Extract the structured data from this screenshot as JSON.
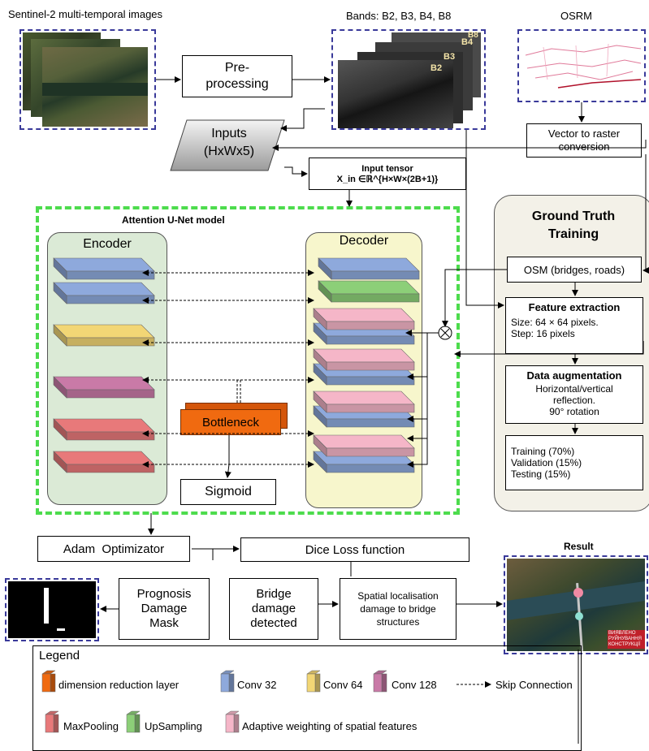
{
  "input_images": {
    "sentinel_label": "Sentinel-2 multi-temporal images",
    "bands_label": "Bands: B2, B3, B4, B8",
    "band_tags": [
      "B8",
      "B4",
      "B3",
      "B2"
    ],
    "osrm_label": "OSRM"
  },
  "pipeline": {
    "preprocessing": "Pre-processing",
    "inputs_line1": "Inputs",
    "inputs_line2": "(HxWx5)",
    "input_tensor_title": "Input tensor",
    "input_tensor_formula": "X_in ∈ℝ^{H×W×(2B+1)}",
    "vector_raster": "Vector to raster conversion"
  },
  "model": {
    "title": "Attention U-Net model",
    "encoder": "Encoder",
    "decoder": "Decoder",
    "bottleneck": "Bottleneck",
    "sigmoid": "Sigmoid"
  },
  "ground_truth": {
    "title_line1": "Ground Truth",
    "title_line2": "Training",
    "osm": "OSM (bridges, roads)",
    "feature_title": "Feature extraction",
    "feature_size": "Size: 64 × 64 pixels.",
    "feature_step": "Step: 16 pixels",
    "aug_title": "Data augmentation",
    "aug_line1": "Horizontal/vertical",
    "aug_line2": "reflection.",
    "aug_line3": "90° rotation",
    "split_train": "Training (70%)",
    "split_val": "Validation (15%)",
    "split_test": "Testing (15%)"
  },
  "bottom": {
    "adam": "Adam  Optimizator",
    "dice": "Dice Loss function",
    "prognosis": "Prognosis Damage Mask",
    "bridge": "Bridge damage detected",
    "spatial": "Spatial localisation damage to bridge structures",
    "result": "Result",
    "result_caption": "ВИЯВЛЕНО РУЙНУВАННЯ КОНСТРУКЦІЇ"
  },
  "legend": {
    "title": "Legend",
    "items": [
      {
        "label": "dimension reduction layer",
        "color": "#f06a10"
      },
      {
        "label": "Conv 32",
        "color": "#8ea9dc"
      },
      {
        "label": "Conv 64",
        "color": "#f2d675"
      },
      {
        "label": "Conv 128",
        "color": "#c97aa7"
      },
      {
        "label": "Skip Connection",
        "color": ""
      },
      {
        "label": "MaxPooling",
        "color": "#e8797a"
      },
      {
        "label": "UpSampling",
        "color": "#8ccf78"
      },
      {
        "label": "Adaptive weighting of spatial features",
        "color": "#f5b6c8"
      }
    ]
  },
  "colors": {
    "frame_dash": "#3a3a9a",
    "model_dash": "#4ddc4d",
    "encoder_bg": "#dbead6",
    "decoder_bg": "#f7f6cc",
    "bottleneck": "#f06a10",
    "gt_bg": "#f3f1e8"
  }
}
